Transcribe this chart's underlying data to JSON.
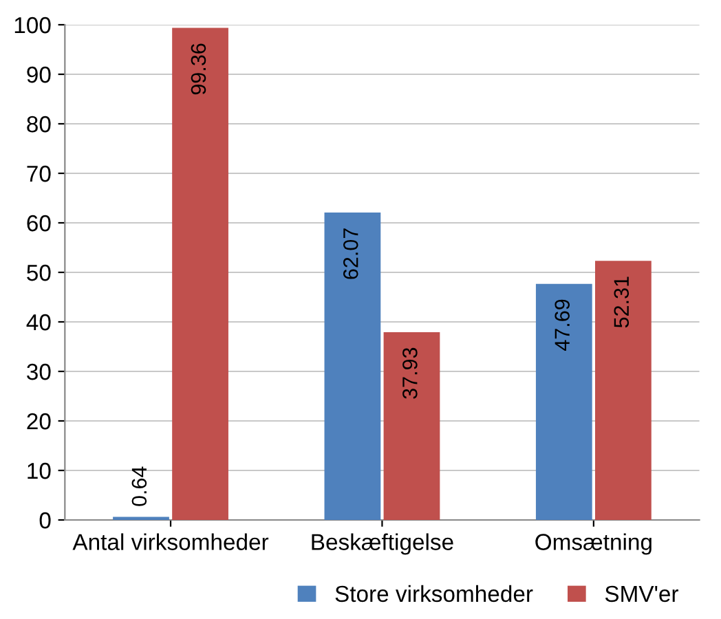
{
  "chart_data": {
    "type": "bar",
    "categories": [
      "Antal virksomheder",
      "Beskæftigelse",
      "Omsætning"
    ],
    "series": [
      {
        "name": "Store virksomheder",
        "color": "#4f81bd",
        "values": [
          0.64,
          62.07,
          47.69
        ]
      },
      {
        "name": "SMV'er",
        "color": "#c0504d",
        "values": [
          99.36,
          37.93,
          52.31
        ]
      }
    ],
    "ylim": [
      0,
      100
    ],
    "yticks": [
      0,
      10,
      20,
      30,
      40,
      50,
      60,
      70,
      80,
      90,
      100
    ],
    "grid": "y",
    "legend": "bottom",
    "data_labels": true
  }
}
